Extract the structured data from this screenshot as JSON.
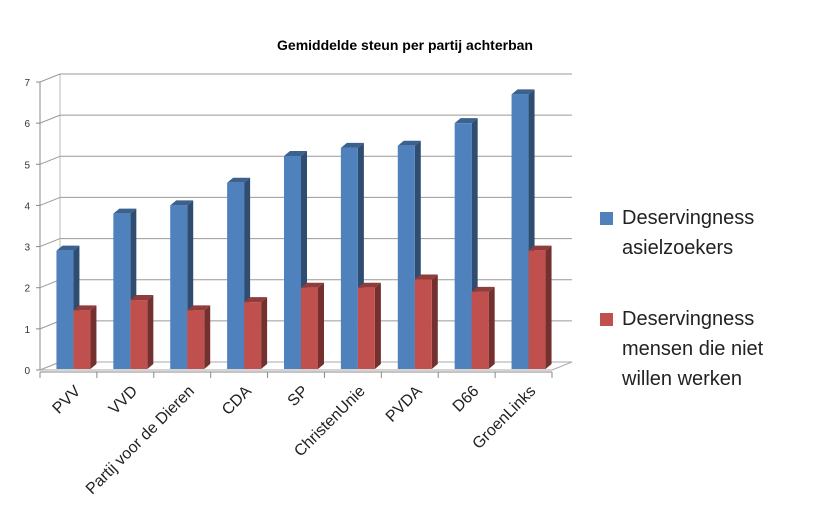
{
  "chart_data": {
    "type": "bar",
    "title": "Gemiddelde steun per partij achterban",
    "categories": [
      "PVV",
      "VVD",
      "Partij voor de Dieren",
      "CDA",
      "SP",
      "ChristenUnie",
      "PVDA",
      "D66",
      "GroenLinks"
    ],
    "series": [
      {
        "name": "Deservingness asielzoekers",
        "color": "#4f81bd",
        "values": [
          2.9,
          3.8,
          4.0,
          4.55,
          5.2,
          5.4,
          5.45,
          6.0,
          6.7
        ]
      },
      {
        "name": "Deservingness mensen die niet willen werken",
        "color": "#c0504d",
        "values": [
          1.45,
          1.7,
          1.45,
          1.65,
          2.0,
          2.0,
          2.2,
          1.9,
          2.9
        ]
      }
    ],
    "ylim": [
      0,
      7
    ],
    "yticks": [
      "0",
      "1",
      "2",
      "3",
      "4",
      "5",
      "6",
      "7"
    ],
    "xlabel": "",
    "ylabel": "",
    "grid": true,
    "legend_position": "right",
    "legend_lines": [
      [
        "Deservingness",
        "asielzoekers"
      ],
      [
        "Deservingness",
        "mensen die niet",
        "willen werken"
      ]
    ]
  }
}
